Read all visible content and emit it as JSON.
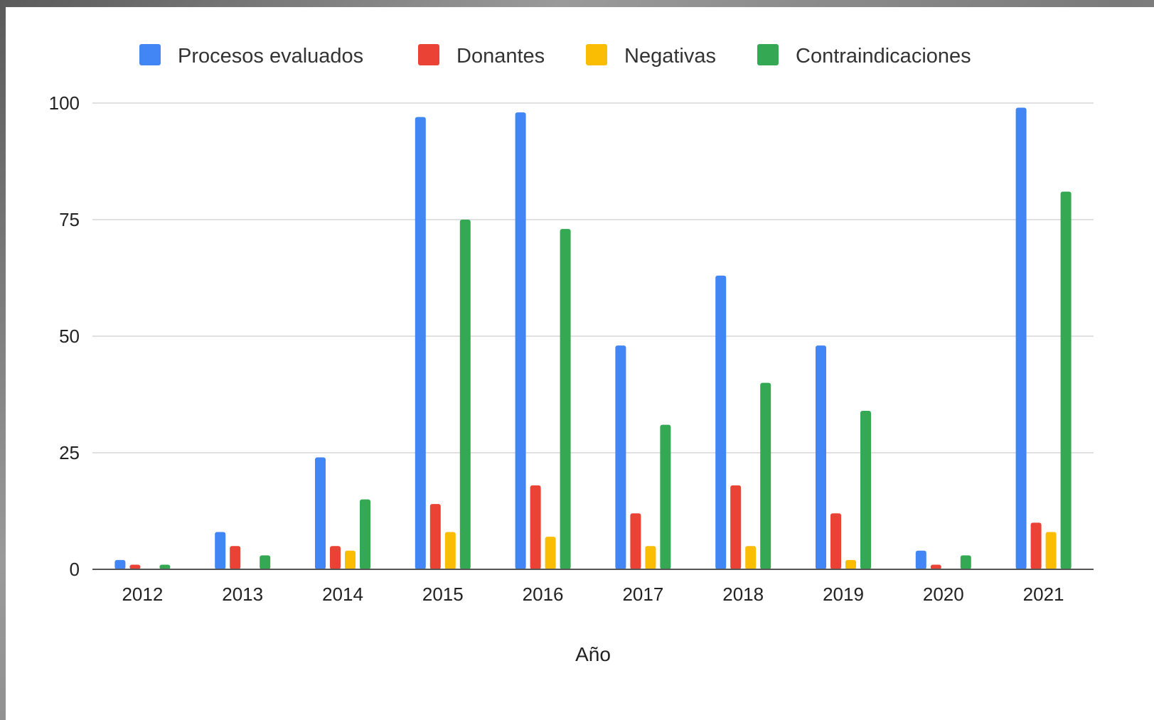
{
  "chart_data": {
    "type": "bar",
    "title": "",
    "xlabel": "Año",
    "ylabel": "",
    "ylim": [
      0,
      100
    ],
    "yticks": [
      0,
      25,
      50,
      75,
      100
    ],
    "grid": true,
    "legend_position": "top",
    "categories": [
      "2012",
      "2013",
      "2014",
      "2015",
      "2016",
      "2017",
      "2018",
      "2019",
      "2020",
      "2021"
    ],
    "series": [
      {
        "name": "Procesos evaluados",
        "color": "#4285f4",
        "values": [
          2,
          8,
          24,
          97,
          98,
          48,
          63,
          48,
          4,
          99
        ]
      },
      {
        "name": "Donantes",
        "color": "#ea4335",
        "values": [
          1,
          5,
          5,
          14,
          18,
          12,
          18,
          12,
          1,
          10
        ]
      },
      {
        "name": "Negativas",
        "color": "#fbbc04",
        "values": [
          0,
          0,
          4,
          8,
          7,
          5,
          5,
          2,
          0,
          8
        ]
      },
      {
        "name": "Contraindicaciones",
        "color": "#34a853",
        "values": [
          1,
          3,
          15,
          75,
          73,
          31,
          40,
          34,
          3,
          81
        ]
      }
    ]
  }
}
